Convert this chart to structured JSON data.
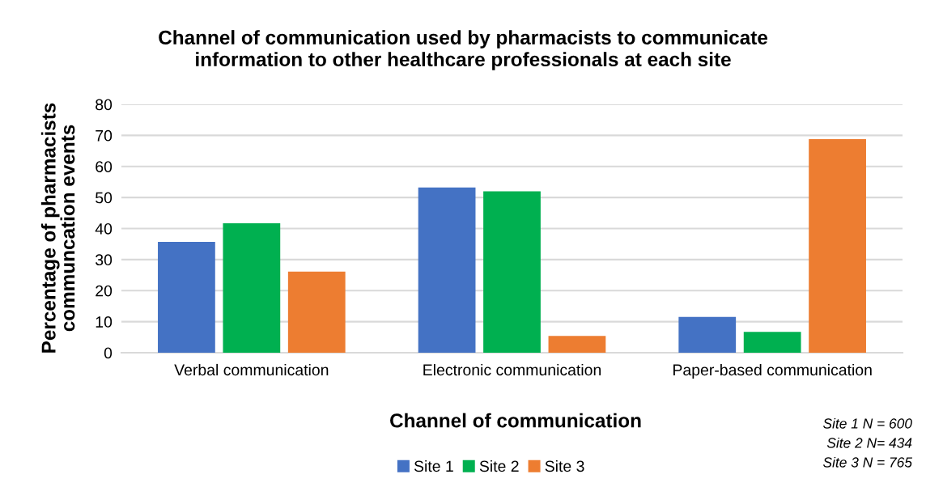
{
  "chart_data": {
    "type": "bar",
    "title": "Channel of communication used by pharmacists to communicate\ninformation to other healthcare professionals at each site",
    "xlabel": "Channel of communication",
    "ylabel": "Percentage of pharmacists\ncommuncation events",
    "categories": [
      "Verbal communication",
      "Electronic communication",
      "Paper-based communication"
    ],
    "series": [
      {
        "name": "Site 1",
        "color": "#4472c4",
        "values": [
          35.7,
          53.2,
          11.5
        ]
      },
      {
        "name": "Site 2",
        "color": "#00b050",
        "values": [
          41.7,
          52.0,
          6.7
        ]
      },
      {
        "name": "Site 3",
        "color": "#ed7d31",
        "values": [
          26.1,
          5.4,
          68.8
        ]
      }
    ],
    "ylim": [
      0,
      80
    ],
    "yticks": [
      0,
      10,
      20,
      30,
      40,
      50,
      60,
      70,
      80
    ],
    "grid": "y",
    "legend": "bottom",
    "annotations": [
      "Site 1 N = 600",
      "Site 2 N= 434",
      "Site 3 N = 765"
    ]
  }
}
